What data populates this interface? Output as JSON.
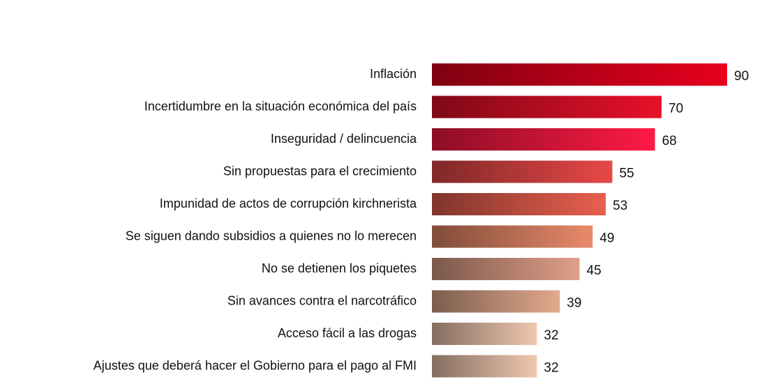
{
  "chart_data": {
    "type": "bar",
    "orientation": "horizontal",
    "categories": [
      "Inflación",
      "Incertidumbre en la situación económica del país",
      "Inseguridad / delincuencia",
      "Sin propuestas para el crecimiento",
      "Impunidad de actos de corrupción kirchnerista",
      "Se siguen dando subsidios a quienes no lo merecen",
      "No se detienen los piquetes",
      "Sin avances contra el narcotráfico",
      "Acceso fácil a las drogas",
      "Ajustes que deberá hacer el Gobierno para el pago al FMI"
    ],
    "values": [
      90,
      70,
      68,
      55,
      53,
      49,
      45,
      39,
      32,
      32
    ],
    "colors": [
      "#e8001e",
      "#e8102a",
      "#ff1a44",
      "#e84848",
      "#e8604f",
      "#e88a6a",
      "#e0a088",
      "#e2a98e",
      "#f0c8b0",
      "#f0c8b0"
    ]
  }
}
